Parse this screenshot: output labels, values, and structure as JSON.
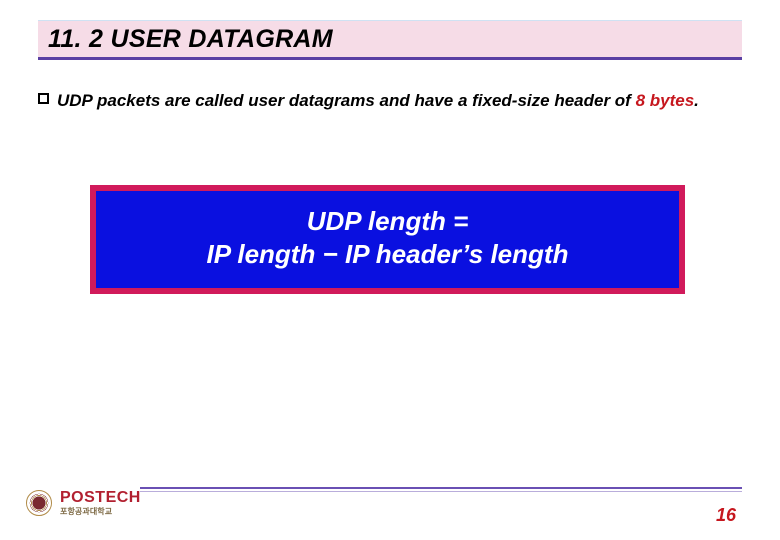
{
  "colors": {
    "title_bg": "#f6dce7",
    "title_rule": "#5a3fa3",
    "formula_frame": "#d11a5b",
    "formula_bg": "#0a10e0",
    "formula_text": "#ffffff",
    "accent_red": "#c6171e",
    "footer_rule_top": "#6a50b4",
    "footer_rule_bottom": "#b9addb",
    "brand_red": "#b22030",
    "brand_gold": "#7e6a45"
  },
  "title": "11. 2 USER DATAGRAM",
  "bullet": {
    "pre": "UDP packets are called user datagrams and have a fixed-size header of ",
    "highlight": "8 bytes",
    "post": "."
  },
  "formula": {
    "line1": "UDP length =",
    "line2": "IP length − IP header’s length"
  },
  "brand": {
    "name": "POSTECH",
    "subtitle": "포항공과대학교"
  },
  "page_number": "16"
}
